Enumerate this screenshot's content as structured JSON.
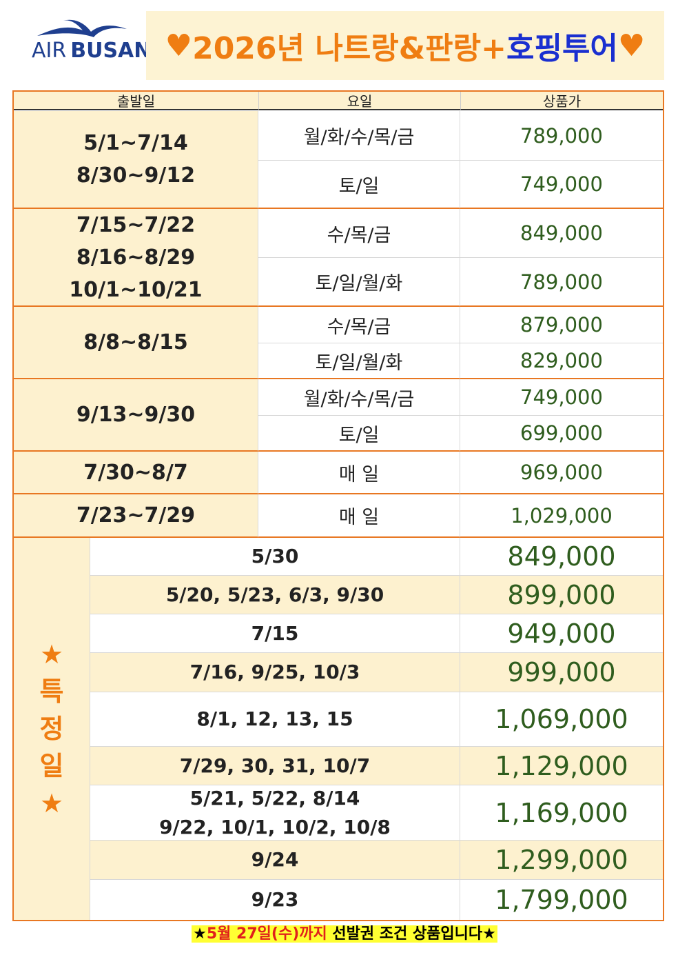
{
  "logo": {
    "air": "AIR",
    "busan": "BUSAN"
  },
  "title": [
    "♥",
    "2026년 나트랑&판랑+",
    "호핑투어",
    "♥"
  ],
  "table": {
    "headers": [
      "출발일",
      "요일",
      "상품가"
    ],
    "groups": [
      {
        "dates": [
          "5/1~7/14",
          "8/30~9/12"
        ],
        "rows": [
          {
            "days": "월/화/수/목/금",
            "price": "789,000"
          },
          {
            "days": "토/일",
            "price": "749,000"
          }
        ]
      },
      {
        "dates": [
          "7/15~7/22",
          "8/16~8/29",
          "10/1~10/21"
        ],
        "rows": [
          {
            "days": "수/목/금",
            "price": "849,000"
          },
          {
            "days": "토/일/월/화",
            "price": "789,000"
          }
        ]
      },
      {
        "dates": [
          "8/8~8/15"
        ],
        "rows": [
          {
            "days": "수/목/금",
            "price": "879,000"
          },
          {
            "days": "토/일/월/화",
            "price": "829,000"
          }
        ]
      },
      {
        "dates": [
          "9/13~9/30"
        ],
        "rows": [
          {
            "days": "월/화/수/목/금",
            "price": "749,000"
          },
          {
            "days": "토/일",
            "price": "699,000"
          }
        ]
      },
      {
        "dates": [
          "7/30~8/7"
        ],
        "rows": [
          {
            "days": "매 일",
            "price": "969,000"
          }
        ]
      },
      {
        "dates": [
          "7/23~7/29"
        ],
        "rows": [
          {
            "days": "매 일",
            "price": "1,029,000"
          }
        ]
      }
    ]
  },
  "special": {
    "label": [
      "★",
      "특",
      "정",
      "일",
      "★"
    ],
    "rows": [
      {
        "dates": [
          "5/30"
        ],
        "price": "849,000"
      },
      {
        "dates": [
          "5/20, 5/23, 6/3, 9/30"
        ],
        "price": "899,000"
      },
      {
        "dates": [
          "7/15"
        ],
        "price": "949,000"
      },
      {
        "dates": [
          "7/16, 9/25, 10/3"
        ],
        "price": "999,000"
      },
      {
        "dates": [
          "8/1, 12, 13, 15"
        ],
        "price": "1,069,000"
      },
      {
        "dates": [
          "7/29, 30, 31, 10/7"
        ],
        "price": "1,129,000"
      },
      {
        "dates": [
          "5/21, 5/22, 8/14",
          "9/22, 10/1, 10/2, 10/8"
        ],
        "price": "1,169,000"
      },
      {
        "dates": [
          "9/24"
        ],
        "price": "1,299,000"
      },
      {
        "dates": [
          "9/23"
        ],
        "price": "1,799,000"
      }
    ]
  },
  "footer": [
    "★",
    "5월 27일(수)까지",
    "선발권 조건 상품입니다★"
  ]
}
